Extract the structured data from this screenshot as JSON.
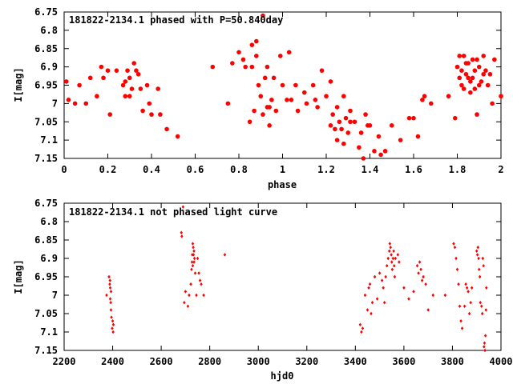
{
  "colors": {
    "points": "#ff0000",
    "axes": "#000000",
    "background": "#ffffff"
  },
  "chart_data": [
    {
      "type": "scatter",
      "title": "181822-2134.1 phased with P=50.840day",
      "xlabel": "phase",
      "ylabel": "I[mag]",
      "xlim": [
        0,
        2
      ],
      "ylim": [
        6.75,
        7.15
      ],
      "y_inverted": true,
      "grid": false,
      "marker": "filled-circle",
      "xticks": [
        "0",
        "0.2",
        "0.4",
        "0.6",
        "0.8",
        "1",
        "1.2",
        "1.4",
        "1.6",
        "1.8",
        "2"
      ],
      "yticks": [
        "6.75",
        "6.8",
        "6.85",
        "6.9",
        "6.95",
        "7",
        "7.05",
        "7.1",
        "7.15"
      ],
      "points": [
        [
          0.01,
          6.94
        ],
        [
          0.02,
          6.99
        ],
        [
          0.05,
          7.0
        ],
        [
          0.07,
          6.95
        ],
        [
          0.1,
          7.0
        ],
        [
          0.15,
          6.98
        ],
        [
          0.17,
          6.9
        ],
        [
          0.18,
          6.93
        ],
        [
          0.2,
          6.91
        ],
        [
          0.21,
          7.03
        ],
        [
          0.24,
          6.91
        ],
        [
          0.27,
          6.95
        ],
        [
          0.28,
          6.94
        ],
        [
          0.28,
          6.98
        ],
        [
          0.29,
          6.91
        ],
        [
          0.3,
          6.93
        ],
        [
          0.3,
          6.98
        ],
        [
          0.31,
          6.96
        ],
        [
          0.32,
          6.89
        ],
        [
          0.33,
          6.91
        ],
        [
          0.35,
          6.96
        ],
        [
          0.36,
          7.02
        ],
        [
          0.38,
          6.95
        ],
        [
          0.39,
          7.0
        ],
        [
          0.4,
          7.03
        ],
        [
          0.43,
          6.96
        ],
        [
          0.44,
          7.03
        ],
        [
          0.47,
          7.07
        ],
        [
          0.52,
          7.09
        ],
        [
          0.68,
          6.9
        ],
        [
          0.75,
          7.0
        ],
        [
          0.77,
          6.89
        ],
        [
          0.8,
          6.86
        ],
        [
          0.82,
          6.88
        ],
        [
          0.83,
          6.9
        ],
        [
          0.85,
          7.05
        ],
        [
          0.86,
          6.84
        ],
        [
          0.86,
          6.9
        ],
        [
          0.87,
          7.02
        ],
        [
          0.88,
          6.83
        ],
        [
          0.88,
          6.87
        ],
        [
          0.89,
          6.95
        ],
        [
          0.9,
          6.98
        ],
        [
          0.91,
          7.03
        ],
        [
          0.92,
          6.93
        ],
        [
          0.93,
          6.9
        ],
        [
          0.93,
          7.01
        ],
        [
          0.94,
          7.01
        ],
        [
          0.94,
          7.06
        ],
        [
          0.95,
          6.99
        ],
        [
          0.96,
          6.93
        ],
        [
          0.97,
          7.02
        ],
        [
          0.99,
          6.87
        ],
        [
          1.0,
          6.95
        ],
        [
          1.02,
          6.99
        ],
        [
          1.03,
          6.86
        ],
        [
          1.04,
          6.99
        ],
        [
          1.06,
          6.95
        ],
        [
          1.07,
          7.02
        ],
        [
          1.1,
          6.97
        ],
        [
          1.11,
          7.0
        ],
        [
          1.14,
          6.95
        ],
        [
          1.15,
          6.99
        ],
        [
          1.16,
          7.01
        ],
        [
          1.18,
          6.91
        ],
        [
          1.2,
          6.98
        ],
        [
          1.22,
          6.94
        ],
        [
          1.22,
          7.06
        ],
        [
          1.23,
          7.03
        ],
        [
          1.24,
          7.07
        ],
        [
          1.25,
          7.01
        ],
        [
          1.25,
          7.1
        ],
        [
          1.26,
          7.05
        ],
        [
          1.27,
          7.07
        ],
        [
          1.28,
          6.98
        ],
        [
          1.28,
          7.11
        ],
        [
          1.29,
          7.04
        ],
        [
          1.3,
          7.08
        ],
        [
          1.31,
          7.05
        ],
        [
          1.31,
          7.02
        ],
        [
          1.33,
          7.05
        ],
        [
          1.35,
          7.12
        ],
        [
          1.36,
          7.08
        ],
        [
          1.38,
          7.03
        ],
        [
          1.39,
          7.06
        ],
        [
          1.4,
          7.06
        ],
        [
          1.42,
          7.13
        ],
        [
          1.44,
          7.09
        ],
        [
          1.47,
          7.13
        ],
        [
          1.5,
          7.06
        ],
        [
          1.54,
          7.1
        ],
        [
          1.58,
          7.04
        ],
        [
          1.6,
          7.04
        ],
        [
          1.62,
          7.09
        ],
        [
          1.64,
          6.99
        ],
        [
          1.65,
          6.98
        ],
        [
          1.68,
          7.0
        ],
        [
          1.76,
          6.98
        ],
        [
          1.79,
          7.04
        ],
        [
          1.81,
          6.87
        ],
        [
          1.82,
          6.91
        ],
        [
          1.83,
          6.87
        ],
        [
          1.83,
          6.96
        ],
        [
          1.84,
          6.89
        ],
        [
          1.85,
          6.93
        ],
        [
          1.86,
          6.97
        ],
        [
          1.87,
          6.88
        ],
        [
          1.88,
          6.91
        ],
        [
          1.88,
          6.96
        ],
        [
          1.89,
          7.03
        ],
        [
          1.9,
          6.9
        ],
        [
          1.91,
          6.94
        ],
        [
          1.92,
          6.87
        ],
        [
          1.93,
          6.91
        ],
        [
          1.94,
          6.95
        ],
        [
          1.95,
          6.92
        ],
        [
          1.96,
          7.0
        ],
        [
          1.97,
          6.88
        ],
        [
          2.0,
          6.98
        ],
        [
          1.8,
          6.9
        ],
        [
          1.81,
          6.93
        ],
        [
          1.82,
          6.95
        ],
        [
          1.84,
          6.92
        ],
        [
          1.85,
          6.89
        ],
        [
          1.86,
          6.94
        ],
        [
          1.87,
          6.93
        ],
        [
          1.89,
          6.88
        ],
        [
          1.9,
          6.95
        ],
        [
          1.92,
          6.92
        ],
        [
          0.91,
          6.76
        ],
        [
          1.45,
          7.14
        ],
        [
          1.37,
          7.15
        ],
        [
          0.34,
          6.92
        ],
        [
          0.12,
          6.93
        ]
      ]
    },
    {
      "type": "scatter",
      "title": "181822-2134.1 not phased light curve",
      "xlabel": "hjd0",
      "ylabel": "I[mag]",
      "xlim": [
        2200,
        4000
      ],
      "ylim": [
        6.75,
        7.15
      ],
      "y_inverted": true,
      "grid": false,
      "marker": "small-diamond",
      "xticks": [
        "2200",
        "2400",
        "2600",
        "2800",
        "3000",
        "3200",
        "3400",
        "3600",
        "3800",
        "4000"
      ],
      "yticks": [
        "6.75",
        "6.8",
        "6.85",
        "6.9",
        "6.95",
        "7",
        "7.05",
        "7.1",
        "7.15"
      ],
      "points": [
        [
          2375,
          7.0
        ],
        [
          2385,
          6.95
        ],
        [
          2388,
          6.97
        ],
        [
          2390,
          6.98
        ],
        [
          2390,
          7.01
        ],
        [
          2392,
          7.02
        ],
        [
          2393,
          7.04
        ],
        [
          2395,
          7.06
        ],
        [
          2398,
          7.09
        ],
        [
          2400,
          7.07
        ],
        [
          2402,
          7.1
        ],
        [
          2403,
          7.08
        ],
        [
          2393,
          6.99
        ],
        [
          2389,
          6.96
        ],
        [
          2690,
          6.76
        ],
        [
          2683,
          6.83
        ],
        [
          2685,
          6.84
        ],
        [
          2695,
          7.02
        ],
        [
          2700,
          6.99
        ],
        [
          2710,
          7.03
        ],
        [
          2715,
          7.0
        ],
        [
          2722,
          6.97
        ],
        [
          2725,
          6.93
        ],
        [
          2727,
          6.91
        ],
        [
          2728,
          6.89
        ],
        [
          2730,
          6.92
        ],
        [
          2732,
          6.87
        ],
        [
          2735,
          6.88
        ],
        [
          2737,
          6.9
        ],
        [
          2740,
          6.94
        ],
        [
          2745,
          7.0
        ],
        [
          2750,
          6.9
        ],
        [
          2755,
          6.94
        ],
        [
          2760,
          6.96
        ],
        [
          2765,
          6.97
        ],
        [
          2775,
          7.0
        ],
        [
          2730,
          6.86
        ],
        [
          2733,
          6.89
        ],
        [
          2735,
          6.91
        ],
        [
          2862,
          6.89
        ],
        [
          3420,
          7.08
        ],
        [
          3425,
          7.1
        ],
        [
          3430,
          7.09
        ],
        [
          3440,
          7.0
        ],
        [
          3450,
          7.04
        ],
        [
          3455,
          6.98
        ],
        [
          3460,
          6.97
        ],
        [
          3465,
          7.05
        ],
        [
          3470,
          7.02
        ],
        [
          3480,
          6.95
        ],
        [
          3490,
          7.01
        ],
        [
          3500,
          6.94
        ],
        [
          3510,
          6.96
        ],
        [
          3515,
          6.98
        ],
        [
          3520,
          7.02
        ],
        [
          3525,
          6.95
        ],
        [
          3530,
          6.92
        ],
        [
          3535,
          6.9
        ],
        [
          3540,
          6.88
        ],
        [
          3542,
          6.86
        ],
        [
          3545,
          6.87
        ],
        [
          3548,
          6.89
        ],
        [
          3550,
          6.91
        ],
        [
          3552,
          6.93
        ],
        [
          3555,
          6.9
        ],
        [
          3558,
          6.88
        ],
        [
          3560,
          6.92
        ],
        [
          3562,
          6.95
        ],
        [
          3565,
          6.9
        ],
        [
          3575,
          6.89
        ],
        [
          3580,
          6.91
        ],
        [
          3600,
          6.98
        ],
        [
          3620,
          7.01
        ],
        [
          3640,
          6.99
        ],
        [
          3655,
          6.92
        ],
        [
          3660,
          6.94
        ],
        [
          3665,
          6.91
        ],
        [
          3670,
          6.93
        ],
        [
          3675,
          6.96
        ],
        [
          3680,
          6.95
        ],
        [
          3690,
          6.97
        ],
        [
          3700,
          7.04
        ],
        [
          3720,
          7.0
        ],
        [
          3770,
          7.0
        ],
        [
          3805,
          6.86
        ],
        [
          3810,
          6.87
        ],
        [
          3815,
          6.9
        ],
        [
          3820,
          6.93
        ],
        [
          3825,
          6.97
        ],
        [
          3830,
          7.03
        ],
        [
          3835,
          7.07
        ],
        [
          3840,
          7.09
        ],
        [
          3850,
          7.03
        ],
        [
          3855,
          6.97
        ],
        [
          3860,
          6.98
        ],
        [
          3865,
          6.99
        ],
        [
          3870,
          7.05
        ],
        [
          3875,
          7.02
        ],
        [
          3880,
          6.98
        ],
        [
          3900,
          6.88
        ],
        [
          3903,
          6.89
        ],
        [
          3905,
          6.87
        ],
        [
          3908,
          6.9
        ],
        [
          3910,
          6.93
        ],
        [
          3913,
          6.95
        ],
        [
          3915,
          7.02
        ],
        [
          3920,
          7.03
        ],
        [
          3923,
          7.05
        ],
        [
          3925,
          6.9
        ],
        [
          3928,
          6.92
        ],
        [
          3930,
          7.14
        ],
        [
          3932,
          7.13
        ],
        [
          3934,
          7.15
        ],
        [
          3936,
          7.11
        ],
        [
          3938,
          7.04
        ],
        [
          3940,
          6.98
        ]
      ]
    }
  ]
}
